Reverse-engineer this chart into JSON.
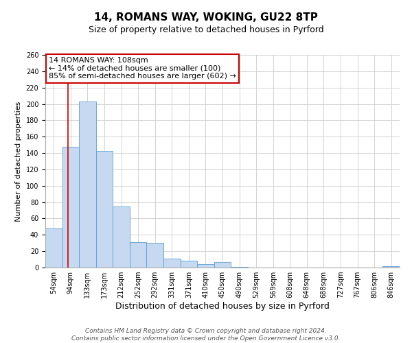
{
  "title": "14, ROMANS WAY, WOKING, GU22 8TP",
  "subtitle": "Size of property relative to detached houses in Pyrford",
  "xlabel": "Distribution of detached houses by size in Pyrford",
  "ylabel": "Number of detached properties",
  "bar_labels": [
    "54sqm",
    "94sqm",
    "133sqm",
    "173sqm",
    "212sqm",
    "252sqm",
    "292sqm",
    "331sqm",
    "371sqm",
    "410sqm",
    "450sqm",
    "490sqm",
    "529sqm",
    "569sqm",
    "608sqm",
    "648sqm",
    "688sqm",
    "727sqm",
    "767sqm",
    "806sqm",
    "846sqm"
  ],
  "bar_values": [
    48,
    148,
    203,
    143,
    75,
    31,
    30,
    11,
    8,
    4,
    7,
    1,
    0,
    0,
    0,
    0,
    0,
    0,
    0,
    0,
    2
  ],
  "bar_color": "#c6d9f0",
  "bar_edge_color": "#5a9fd4",
  "ylim": [
    0,
    260
  ],
  "yticks": [
    0,
    20,
    40,
    60,
    80,
    100,
    120,
    140,
    160,
    180,
    200,
    220,
    240,
    260
  ],
  "annotation_title": "14 ROMANS WAY: 108sqm",
  "annotation_line1": "← 14% of detached houses are smaller (100)",
  "annotation_line2": "85% of semi-detached houses are larger (602) →",
  "footer_line1": "Contains HM Land Registry data © Crown copyright and database right 2024.",
  "footer_line2": "Contains public sector information licensed under the Open Government Licence v3.0.",
  "background_color": "#ffffff",
  "grid_color": "#cccccc",
  "annotation_box_color": "#ffffff",
  "annotation_box_edge_color": "#cc0000",
  "property_line_color": "#cc0000",
  "title_fontsize": 11,
  "subtitle_fontsize": 9,
  "xlabel_fontsize": 9,
  "ylabel_fontsize": 8,
  "tick_fontsize": 7,
  "annotation_fontsize": 8,
  "footer_fontsize": 6.5
}
